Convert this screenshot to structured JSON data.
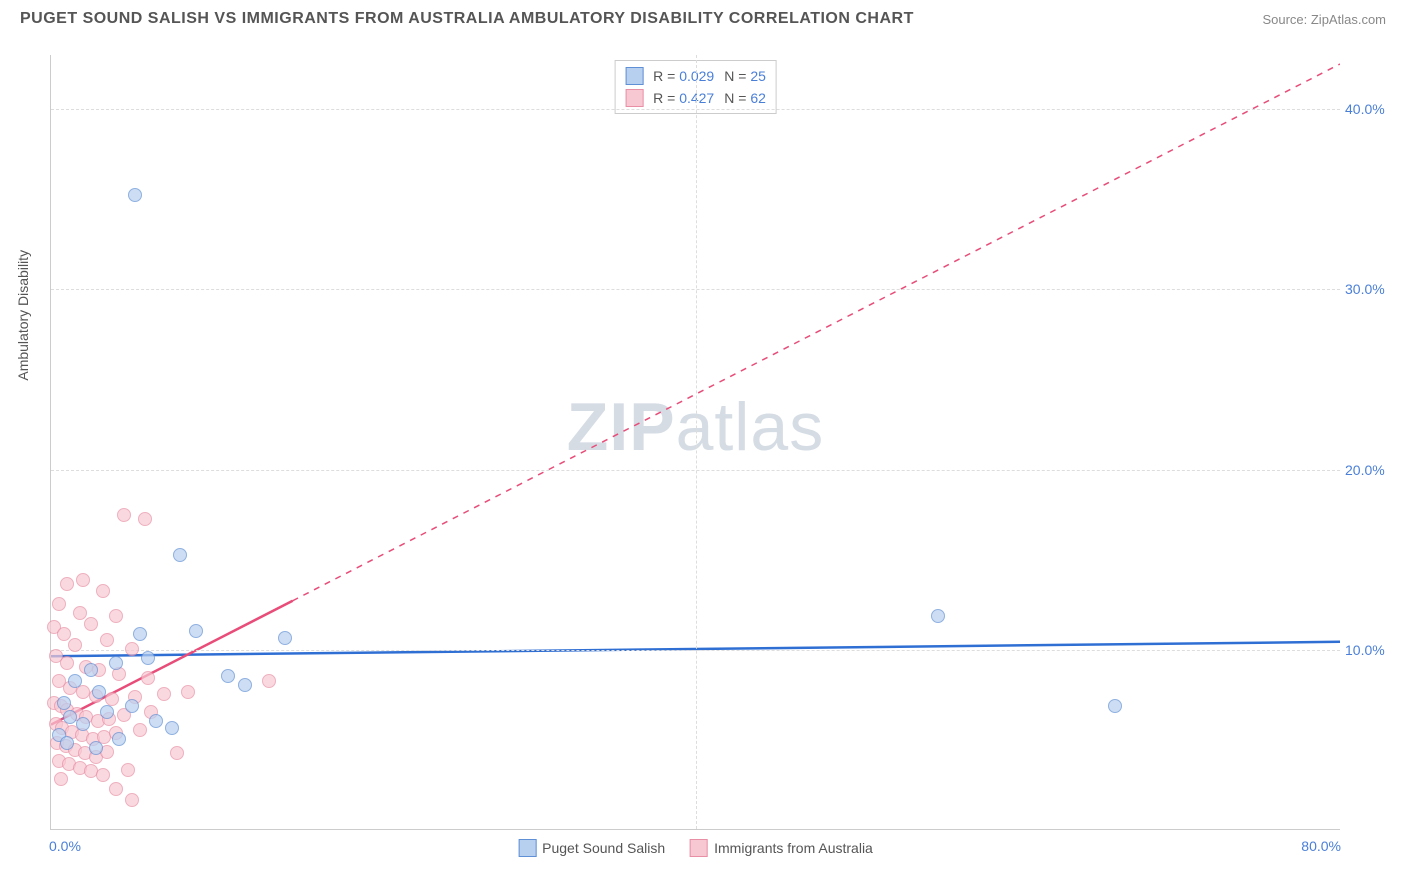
{
  "title": "PUGET SOUND SALISH VS IMMIGRANTS FROM AUSTRALIA AMBULATORY DISABILITY CORRELATION CHART",
  "source": "Source: ZipAtlas.com",
  "y_axis_label": "Ambulatory Disability",
  "watermark_zip": "ZIP",
  "watermark_atlas": "atlas",
  "chart": {
    "type": "scatter",
    "xlim": [
      0,
      80
    ],
    "ylim": [
      0,
      43
    ],
    "x_ticks": [
      0,
      80
    ],
    "x_tick_labels": [
      "0.0%",
      "80.0%"
    ],
    "y_ticks": [
      10,
      20,
      30,
      40
    ],
    "y_tick_labels": [
      "10.0%",
      "20.0%",
      "30.0%",
      "40.0%"
    ],
    "x_gridlines": [
      40
    ],
    "background_color": "#ffffff",
    "grid_color": "#dddddd",
    "axis_color": "#cccccc",
    "tick_label_color": "#4a7fd8",
    "tick_fontsize": 14,
    "title_color": "#555555",
    "title_fontsize": 16,
    "marker_size": 14,
    "marker_opacity": 0.7
  },
  "series": {
    "blue": {
      "label": "Puget Sound Salish",
      "R": "0.029",
      "N": "25",
      "fill": "#b8d0f0",
      "stroke": "#5f8fd4",
      "trend_color": "#2f6fd4",
      "trend_width": 2.5,
      "trend_solid_xmax": 80,
      "trend_y_at_x0": 9.6,
      "trend_y_at_xmax": 10.4,
      "points": [
        [
          5.2,
          35.2
        ],
        [
          55.0,
          11.8
        ],
        [
          66.0,
          6.8
        ],
        [
          8.0,
          15.2
        ],
        [
          14.5,
          10.6
        ],
        [
          11.0,
          8.5
        ],
        [
          12.0,
          8.0
        ],
        [
          6.0,
          9.5
        ],
        [
          4.0,
          9.2
        ],
        [
          2.5,
          8.8
        ],
        [
          1.5,
          8.2
        ],
        [
          3.0,
          7.6
        ],
        [
          0.8,
          7.0
        ],
        [
          5.0,
          6.8
        ],
        [
          1.2,
          6.2
        ],
        [
          2.0,
          5.8
        ],
        [
          3.5,
          6.5
        ],
        [
          6.5,
          6.0
        ],
        [
          7.5,
          5.6
        ],
        [
          0.5,
          5.2
        ],
        [
          1.0,
          4.8
        ],
        [
          2.8,
          4.5
        ],
        [
          4.2,
          5.0
        ],
        [
          9.0,
          11.0
        ],
        [
          5.5,
          10.8
        ]
      ]
    },
    "pink": {
      "label": "Immigrants from Australia",
      "R": "0.427",
      "N": "62",
      "fill": "#f8c8d2",
      "stroke": "#e88fa5",
      "trend_color": "#e84c78",
      "trend_width": 2.5,
      "trend_solid_xmax": 15,
      "trend_y_at_x0": 5.8,
      "trend_y_at_xmax": 42.5,
      "points": [
        [
          4.5,
          17.4
        ],
        [
          5.8,
          17.2
        ],
        [
          2.0,
          13.8
        ],
        [
          3.2,
          13.2
        ],
        [
          1.0,
          13.6
        ],
        [
          0.5,
          12.5
        ],
        [
          1.8,
          12.0
        ],
        [
          2.5,
          11.4
        ],
        [
          0.2,
          11.2
        ],
        [
          4.0,
          11.8
        ],
        [
          0.8,
          10.8
        ],
        [
          1.5,
          10.2
        ],
        [
          3.5,
          10.5
        ],
        [
          5.0,
          10.0
        ],
        [
          0.3,
          9.6
        ],
        [
          1.0,
          9.2
        ],
        [
          2.2,
          9.0
        ],
        [
          3.0,
          8.8
        ],
        [
          4.2,
          8.6
        ],
        [
          6.0,
          8.4
        ],
        [
          0.5,
          8.2
        ],
        [
          1.2,
          7.8
        ],
        [
          2.0,
          7.6
        ],
        [
          2.8,
          7.4
        ],
        [
          3.8,
          7.2
        ],
        [
          5.2,
          7.3
        ],
        [
          7.0,
          7.5
        ],
        [
          8.5,
          7.6
        ],
        [
          13.5,
          8.2
        ],
        [
          0.2,
          7.0
        ],
        [
          0.6,
          6.8
        ],
        [
          1.0,
          6.6
        ],
        [
          1.6,
          6.4
        ],
        [
          2.2,
          6.2
        ],
        [
          2.9,
          6.0
        ],
        [
          3.6,
          6.1
        ],
        [
          4.5,
          6.3
        ],
        [
          6.2,
          6.5
        ],
        [
          0.3,
          5.8
        ],
        [
          0.7,
          5.6
        ],
        [
          1.3,
          5.4
        ],
        [
          1.9,
          5.2
        ],
        [
          2.6,
          5.0
        ],
        [
          3.3,
          5.1
        ],
        [
          4.0,
          5.3
        ],
        [
          5.5,
          5.5
        ],
        [
          7.8,
          4.2
        ],
        [
          0.4,
          4.8
        ],
        [
          0.9,
          4.6
        ],
        [
          1.5,
          4.4
        ],
        [
          2.1,
          4.2
        ],
        [
          2.8,
          4.0
        ],
        [
          3.5,
          4.3
        ],
        [
          4.8,
          3.3
        ],
        [
          0.5,
          3.8
        ],
        [
          1.1,
          3.6
        ],
        [
          1.8,
          3.4
        ],
        [
          2.5,
          3.2
        ],
        [
          3.2,
          3.0
        ],
        [
          4.0,
          2.2
        ],
        [
          5.0,
          1.6
        ],
        [
          0.6,
          2.8
        ]
      ]
    }
  }
}
